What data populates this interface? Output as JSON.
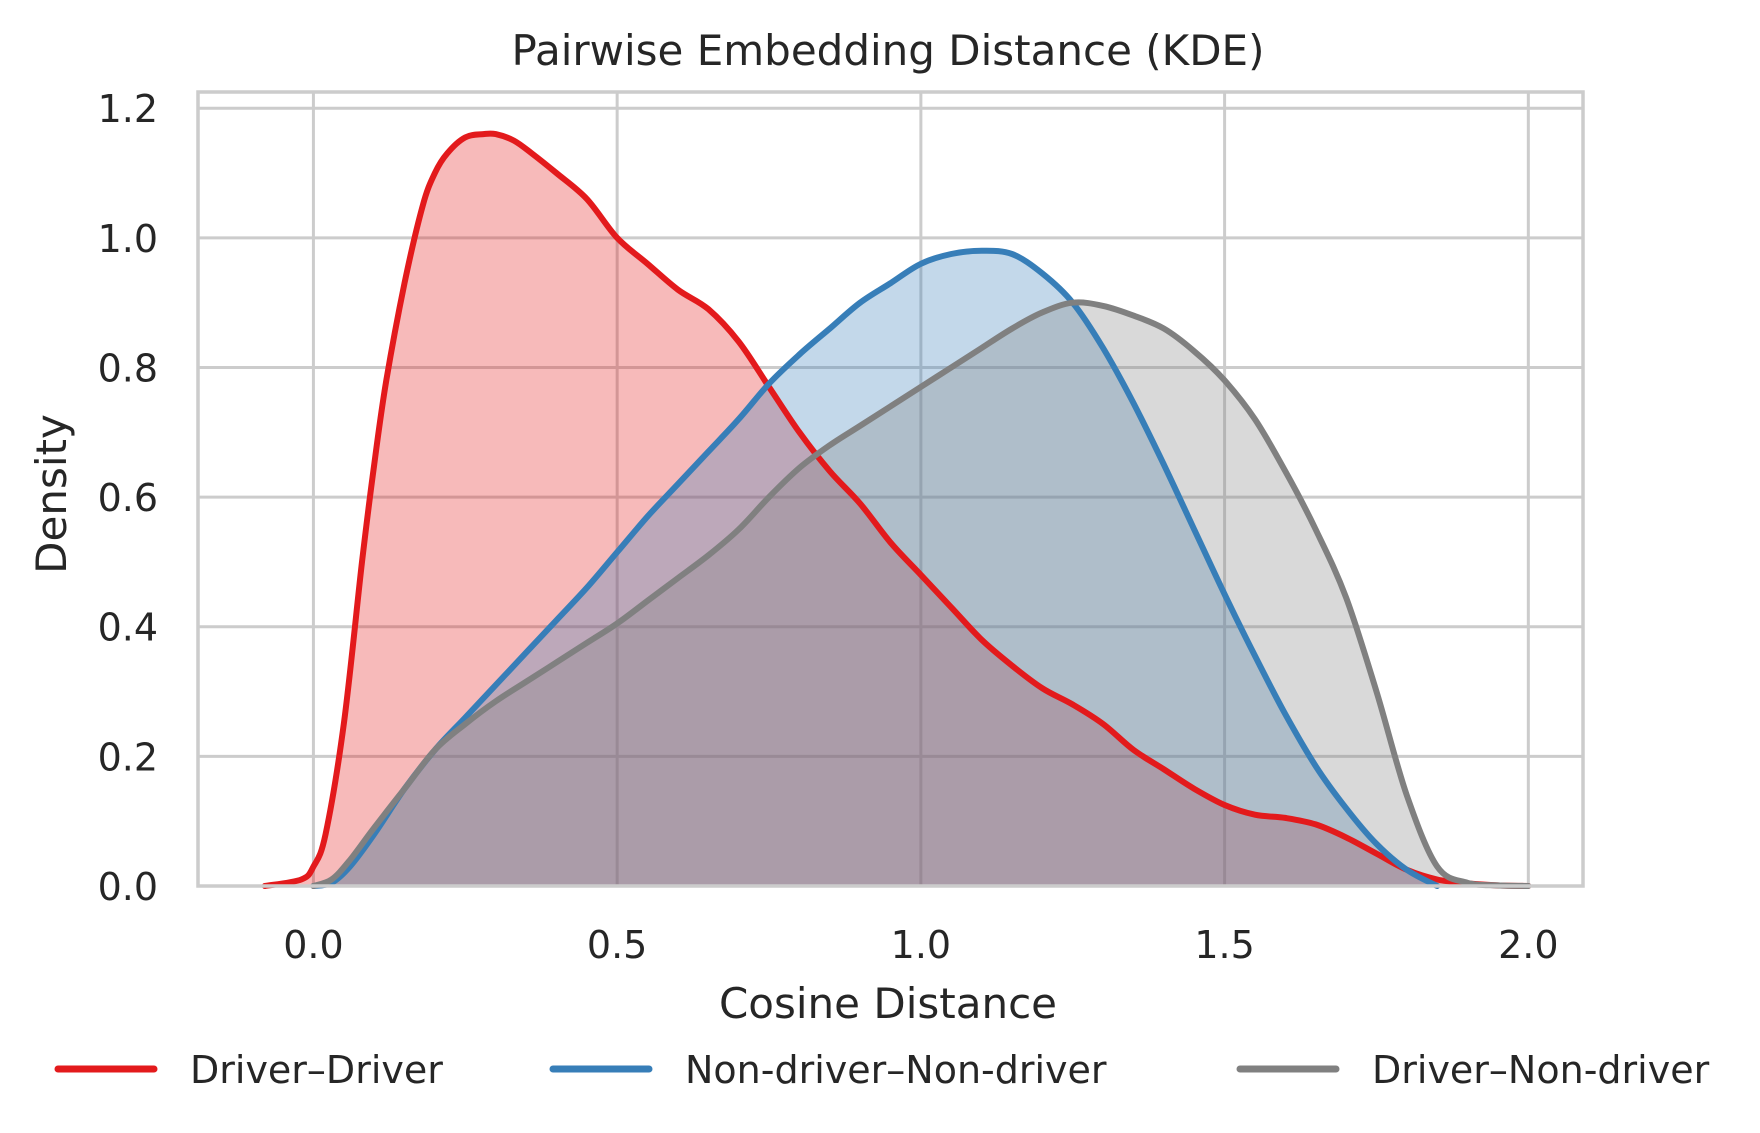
{
  "chart_data": {
    "type": "area",
    "title": "Pairwise Embedding Distance (KDE)",
    "xlabel": "Cosine Distance",
    "ylabel": "Density",
    "xlim": [
      -0.19,
      2.09
    ],
    "ylim": [
      0,
      1.225
    ],
    "x_ticks": [
      0.0,
      0.5,
      1.0,
      1.5,
      2.0
    ],
    "x_tick_labels": [
      "0.0",
      "0.5",
      "1.0",
      "1.5",
      "2.0"
    ],
    "y_ticks": [
      0.0,
      0.2,
      0.4,
      0.6,
      0.8,
      1.0,
      1.2
    ],
    "y_tick_labels": [
      "0.0",
      "0.2",
      "0.4",
      "0.6",
      "0.8",
      "1.0",
      "1.2"
    ],
    "grid": true,
    "legend_position": "bottom",
    "series": [
      {
        "name": "Driver–Driver",
        "color": "#e31a1c",
        "x": [
          -0.08,
          -0.02,
          0.0,
          0.02,
          0.05,
          0.08,
          0.1,
          0.12,
          0.15,
          0.18,
          0.2,
          0.22,
          0.25,
          0.28,
          0.3,
          0.33,
          0.36,
          0.4,
          0.45,
          0.5,
          0.55,
          0.6,
          0.65,
          0.7,
          0.75,
          0.8,
          0.85,
          0.9,
          0.95,
          1.0,
          1.05,
          1.1,
          1.15,
          1.2,
          1.25,
          1.3,
          1.35,
          1.4,
          1.45,
          1.5,
          1.55,
          1.6,
          1.65,
          1.7,
          1.75,
          1.8,
          1.85,
          1.9,
          1.95,
          2.0
        ],
        "y": [
          0.0,
          0.01,
          0.03,
          0.08,
          0.25,
          0.5,
          0.65,
          0.78,
          0.93,
          1.05,
          1.1,
          1.13,
          1.155,
          1.16,
          1.16,
          1.15,
          1.13,
          1.1,
          1.06,
          1.0,
          0.96,
          0.92,
          0.89,
          0.84,
          0.77,
          0.7,
          0.64,
          0.59,
          0.53,
          0.48,
          0.43,
          0.38,
          0.34,
          0.305,
          0.28,
          0.25,
          0.21,
          0.18,
          0.15,
          0.125,
          0.11,
          0.105,
          0.095,
          0.075,
          0.05,
          0.025,
          0.01,
          0.004,
          0.001,
          0.0
        ]
      },
      {
        "name": "Non-driver–Non-driver",
        "color": "#377eb8",
        "x": [
          0.0,
          0.03,
          0.06,
          0.1,
          0.15,
          0.2,
          0.25,
          0.3,
          0.35,
          0.4,
          0.45,
          0.5,
          0.55,
          0.6,
          0.65,
          0.7,
          0.75,
          0.8,
          0.85,
          0.9,
          0.95,
          1.0,
          1.05,
          1.1,
          1.15,
          1.2,
          1.25,
          1.3,
          1.35,
          1.4,
          1.45,
          1.5,
          1.55,
          1.6,
          1.65,
          1.7,
          1.75,
          1.8,
          1.85
        ],
        "y": [
          0.0,
          0.005,
          0.03,
          0.08,
          0.15,
          0.21,
          0.26,
          0.31,
          0.36,
          0.41,
          0.46,
          0.515,
          0.57,
          0.62,
          0.67,
          0.72,
          0.775,
          0.82,
          0.86,
          0.9,
          0.93,
          0.96,
          0.975,
          0.98,
          0.975,
          0.945,
          0.9,
          0.83,
          0.745,
          0.65,
          0.55,
          0.45,
          0.355,
          0.265,
          0.185,
          0.12,
          0.065,
          0.025,
          0.0
        ]
      },
      {
        "name": "Driver–Non-driver",
        "color": "#808080",
        "x": [
          0.0,
          0.03,
          0.06,
          0.1,
          0.15,
          0.2,
          0.25,
          0.3,
          0.35,
          0.4,
          0.45,
          0.5,
          0.55,
          0.6,
          0.65,
          0.7,
          0.75,
          0.8,
          0.85,
          0.9,
          0.95,
          1.0,
          1.05,
          1.1,
          1.15,
          1.2,
          1.25,
          1.3,
          1.35,
          1.4,
          1.45,
          1.5,
          1.55,
          1.6,
          1.65,
          1.7,
          1.75,
          1.8,
          1.85,
          1.9,
          1.95,
          2.0
        ],
        "y": [
          0.0,
          0.01,
          0.04,
          0.09,
          0.15,
          0.21,
          0.25,
          0.285,
          0.315,
          0.345,
          0.375,
          0.405,
          0.44,
          0.475,
          0.51,
          0.55,
          0.6,
          0.645,
          0.68,
          0.71,
          0.74,
          0.77,
          0.8,
          0.83,
          0.86,
          0.885,
          0.9,
          0.895,
          0.88,
          0.86,
          0.825,
          0.78,
          0.72,
          0.64,
          0.55,
          0.445,
          0.3,
          0.14,
          0.03,
          0.005,
          0.001,
          0.0
        ]
      }
    ]
  }
}
